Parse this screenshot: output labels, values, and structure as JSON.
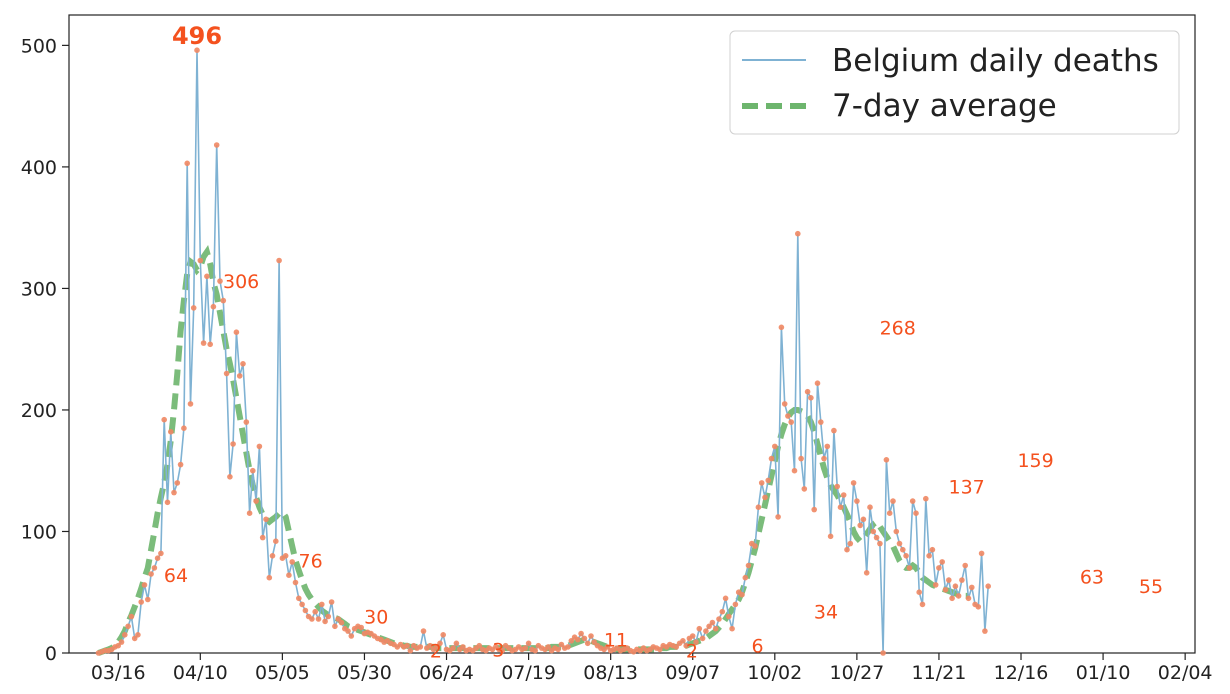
{
  "chart_data": {
    "type": "line",
    "title": "",
    "xlabel": "",
    "ylabel": "",
    "start_date": "2020-03-10",
    "x_ticks": [
      {
        "day": 6,
        "label": "03/16"
      },
      {
        "day": 31,
        "label": "04/10"
      },
      {
        "day": 56,
        "label": "05/05"
      },
      {
        "day": 81,
        "label": "05/30"
      },
      {
        "day": 106,
        "label": "06/24"
      },
      {
        "day": 131,
        "label": "07/19"
      },
      {
        "day": 156,
        "label": "08/13"
      },
      {
        "day": 181,
        "label": "09/07"
      },
      {
        "day": 206,
        "label": "10/02"
      },
      {
        "day": 231,
        "label": "10/27"
      },
      {
        "day": 256,
        "label": "11/21"
      },
      {
        "day": 281,
        "label": "12/16"
      },
      {
        "day": 306,
        "label": "01/10"
      },
      {
        "day": 331,
        "label": "02/04"
      }
    ],
    "y_ticks": [
      0,
      100,
      200,
      300,
      400,
      500
    ],
    "xlim": [
      -9,
      334
    ],
    "ylim": [
      0,
      525
    ],
    "legend": {
      "position": "top-right"
    },
    "grid": false,
    "series": [
      {
        "name": "Belgium daily deaths",
        "color": "#7fb2d3",
        "marker_color": "#f08763",
        "values": [
          0,
          1,
          2,
          2,
          3,
          5,
          6,
          9,
          15,
          22,
          30,
          12,
          15,
          42,
          56,
          44,
          65,
          70,
          78,
          82,
          192,
          124,
          182,
          132,
          140,
          155,
          185,
          403,
          205,
          284,
          496,
          323,
          255,
          310,
          254,
          285,
          418,
          306,
          290,
          230,
          145,
          172,
          264,
          228,
          238,
          190,
          115,
          150,
          125,
          170,
          95,
          110,
          62,
          80,
          92,
          323,
          78,
          80,
          64,
          75,
          58,
          45,
          40,
          35,
          30,
          28,
          34,
          28,
          40,
          26,
          30,
          42,
          22,
          28,
          25,
          20,
          18,
          14,
          20,
          22,
          21,
          16,
          17,
          16,
          14,
          12,
          11,
          9,
          10,
          8,
          7,
          5,
          7,
          5,
          6,
          2,
          6,
          4,
          5,
          18,
          4,
          6,
          3,
          5,
          8,
          15,
          3,
          2,
          4,
          8,
          3,
          5,
          2,
          3,
          2,
          4,
          6,
          3,
          2,
          4,
          3,
          5,
          3,
          2,
          6,
          4,
          2,
          3,
          5,
          3,
          4,
          8,
          3,
          2,
          6,
          4,
          3,
          5,
          2,
          4,
          3,
          7,
          4,
          5,
          10,
          13,
          11,
          16,
          12,
          8,
          14,
          9,
          6,
          4,
          3,
          5,
          2,
          3,
          4,
          2,
          3,
          4,
          2,
          1,
          3,
          2,
          4,
          2,
          3,
          5,
          4,
          3,
          6,
          5,
          7,
          6,
          5,
          8,
          10,
          6,
          12,
          14,
          9,
          20,
          12,
          18,
          22,
          25,
          20,
          28,
          34,
          45,
          30,
          20,
          40,
          50,
          48,
          62,
          72,
          90,
          88,
          120,
          140,
          128,
          142,
          160,
          170,
          112,
          268,
          205,
          195,
          190,
          150,
          345,
          160,
          135,
          215,
          210,
          118,
          222,
          190,
          160,
          170,
          96,
          183,
          137,
          120,
          130,
          85,
          90,
          140,
          125,
          105,
          110,
          66,
          120,
          100,
          95,
          90,
          0,
          159,
          115,
          125,
          100,
          90,
          85,
          80,
          70,
          125,
          115,
          50,
          40,
          127,
          80,
          85,
          56,
          70,
          75,
          52,
          60,
          45,
          55,
          47,
          60,
          72,
          45,
          54,
          40,
          38,
          82,
          18,
          55
        ],
        "x_start": 0
      },
      {
        "name": "7-day average",
        "color": "#6db56d",
        "values": [
          0,
          1,
          2,
          3,
          4,
          6,
          9,
          13,
          18,
          25,
          31,
          38,
          45,
          53,
          62,
          70,
          85,
          100,
          115,
          128,
          140,
          155,
          175,
          200,
          230,
          265,
          290,
          312,
          322,
          320,
          315,
          318,
          326,
          330,
          320,
          305,
          295,
          280,
          265,
          250,
          238,
          225,
          210,
          195,
          180,
          165,
          150,
          138,
          128,
          120,
          114,
          110,
          108,
          110,
          112,
          115,
          116,
          112,
          100,
          88,
          76,
          68,
          60,
          53,
          48,
          44,
          41,
          38,
          35,
          33,
          31,
          30,
          29,
          28,
          26,
          24,
          22,
          21,
          20,
          19,
          18,
          17,
          16,
          15,
          14,
          13,
          12,
          11,
          10,
          9,
          8,
          7,
          7,
          6,
          6,
          5,
          5,
          5,
          5,
          5,
          5,
          5,
          5,
          4,
          4,
          4,
          4,
          4,
          4,
          4,
          4,
          4,
          4,
          4,
          4,
          4,
          4,
          4,
          4,
          4,
          4,
          4,
          4,
          4,
          4,
          4,
          4,
          4,
          4,
          4,
          4,
          4,
          4,
          4,
          4,
          4,
          4,
          4,
          5,
          5,
          5,
          5,
          6,
          6,
          7,
          8,
          9,
          10,
          11,
          11,
          10,
          9,
          8,
          7,
          6,
          5,
          4,
          4,
          3,
          3,
          3,
          3,
          3,
          3,
          3,
          3,
          3,
          3,
          3,
          3,
          3,
          4,
          4,
          4,
          5,
          5,
          5,
          5,
          6,
          6,
          7,
          8,
          9,
          10,
          11,
          12,
          14,
          16,
          18,
          21,
          24,
          28,
          32,
          36,
          40,
          44,
          50,
          58,
          66,
          76,
          86,
          98,
          110,
          122,
          134,
          146,
          158,
          170,
          180,
          188,
          194,
          198,
          200,
          200,
          199,
          198,
          195,
          190,
          182,
          172,
          162,
          152,
          144,
          138,
          134,
          130,
          125,
          120,
          114,
          108,
          100,
          95,
          92,
          94,
          98,
          102,
          106,
          108,
          104,
          100,
          96,
          92,
          88,
          82,
          76,
          72,
          70,
          70,
          72,
          70,
          66,
          62,
          60,
          58,
          56,
          55,
          54,
          53,
          52,
          51,
          50,
          49,
          48,
          48,
          47,
          47
        ],
        "x_start": 0
      }
    ],
    "annotations": [
      {
        "day": 19,
        "value": 64,
        "text": "64",
        "peak": false
      },
      {
        "day": 30,
        "value": 496,
        "text": "496",
        "peak": true
      },
      {
        "day": 37,
        "value": 306,
        "text": "306",
        "peak": false
      },
      {
        "day": 60,
        "value": 76,
        "text": "76",
        "peak": false
      },
      {
        "day": 80,
        "value": 30,
        "text": "30",
        "peak": false
      },
      {
        "day": 100,
        "value": 2,
        "text": "2",
        "peak": false
      },
      {
        "day": 119,
        "value": 3,
        "text": "3",
        "peak": false
      },
      {
        "day": 153,
        "value": 11,
        "text": "11",
        "peak": false
      },
      {
        "day": 178,
        "value": 2,
        "text": "2",
        "peak": false
      },
      {
        "day": 198,
        "value": 6,
        "text": "6",
        "peak": false
      },
      {
        "day": 217,
        "value": 34,
        "text": "34",
        "peak": false
      },
      {
        "day": 237,
        "value": 268,
        "text": "268",
        "peak": false
      },
      {
        "day": 258,
        "value": 137,
        "text": "137",
        "peak": false
      },
      {
        "day": 279,
        "value": 159,
        "text": "159",
        "peak": false
      },
      {
        "day": 298,
        "value": 63,
        "text": "63",
        "peak": false
      },
      {
        "day": 316,
        "value": 55,
        "text": "55",
        "peak": false
      }
    ]
  }
}
